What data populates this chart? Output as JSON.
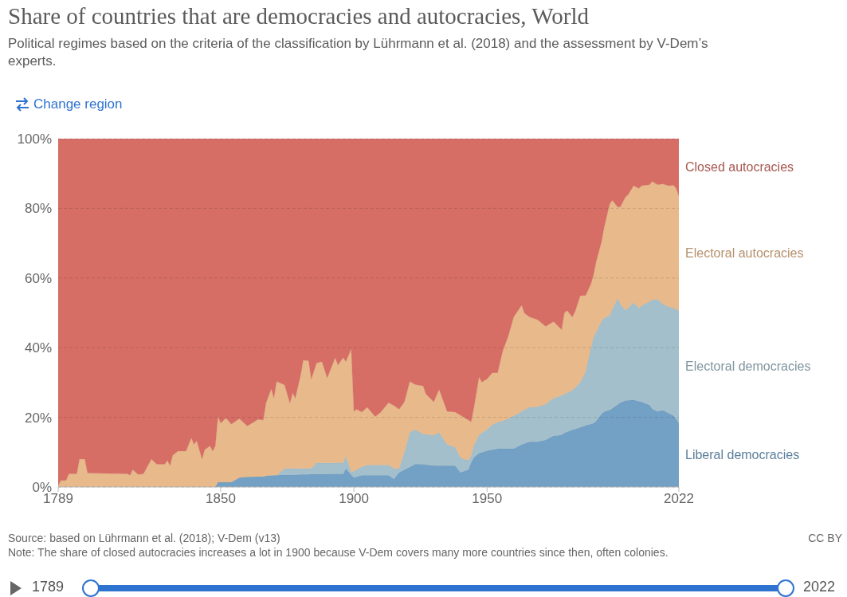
{
  "chart_data": {
    "type": "area",
    "stacked": true,
    "title": "Share of countries that are democracies and autocracies, World",
    "subtitle": "Political regimes based on the criteria of the classification by Lührmann et al. (2018) and the assessment by V-Dem’s experts.",
    "x": [
      1789,
      1790,
      1792,
      1793,
      1796,
      1797,
      1799,
      1800,
      1815,
      1816,
      1817,
      1819,
      1821,
      1824,
      1826,
      1829,
      1830,
      1831,
      1832,
      1834,
      1837,
      1839,
      1840,
      1841,
      1843,
      1844,
      1846,
      1847,
      1848,
      1849,
      1850,
      1852,
      1854,
      1857,
      1860,
      1864,
      1866,
      1867,
      1869,
      1870,
      1871,
      1874,
      1876,
      1877,
      1878,
      1880,
      1881,
      1883,
      1884,
      1886,
      1888,
      1890,
      1893,
      1894,
      1896,
      1897,
      1899,
      1900,
      1901,
      1903,
      1905,
      1908,
      1910,
      1913,
      1915,
      1917,
      1919,
      1921,
      1923,
      1926,
      1927,
      1930,
      1932,
      1935,
      1938,
      1940,
      1943,
      1944,
      1945,
      1947,
      1948,
      1950,
      1952,
      1954,
      1955,
      1956,
      1958,
      1960,
      1963,
      1964,
      1966,
      1969,
      1972,
      1975,
      1977,
      1978,
      1979,
      1980,
      1982,
      1983,
      1985,
      1987,
      1989,
      1990,
      1991,
      1993,
      1994,
      1996,
      1997,
      1999,
      2000,
      2002,
      2003,
      2005,
      2007,
      2008,
      2011,
      2012,
      2014,
      2016,
      2018,
      2020,
      2021,
      2022
    ],
    "series": [
      {
        "name": "Liberal democracies",
        "color": "#73a0c5",
        "values": [
          0,
          0,
          0,
          0,
          0,
          0,
          0,
          0,
          0,
          0,
          0,
          0,
          0,
          0,
          0,
          0,
          0,
          0,
          0,
          0,
          0,
          0,
          0,
          0,
          0,
          0,
          0,
          0,
          0,
          1.4,
          1.4,
          1.4,
          1.4,
          2.7,
          2.9,
          3,
          3,
          3.2,
          3.3,
          3.4,
          3.4,
          3.5,
          3.5,
          3.5,
          3.5,
          3.6,
          3.6,
          3.6,
          3.7,
          3.7,
          3.7,
          3.7,
          3.8,
          3.8,
          3.8,
          5.3,
          3.5,
          2.7,
          2.9,
          3.4,
          3.4,
          3.4,
          3.4,
          3.4,
          2.3,
          4.2,
          5,
          5.7,
          6.6,
          6.5,
          6.4,
          6.1,
          6.1,
          6.1,
          6.1,
          4.2,
          5,
          7,
          8.4,
          9.7,
          9.9,
          10.4,
          10.7,
          11,
          11,
          11,
          11,
          11,
          12.2,
          12.5,
          13,
          13,
          13.5,
          14.7,
          14.8,
          15,
          15.5,
          15.8,
          16.4,
          16.6,
          17.1,
          17.7,
          18.1,
          18.3,
          19,
          21,
          21.6,
          22.1,
          22.6,
          23.6,
          24.2,
          24.8,
          24.9,
          25,
          24.6,
          24.4,
          23.5,
          22.4,
          21.7,
          22,
          21.2,
          20.5,
          19.5,
          18.3
        ]
      },
      {
        "name": "Electoral democracies",
        "color": "#a3bfcb",
        "values": [
          0,
          0,
          0,
          0,
          0,
          0,
          0,
          0,
          0,
          0,
          0,
          0,
          0,
          0,
          0,
          0,
          0,
          0,
          0,
          0,
          0,
          0,
          0,
          0,
          0,
          0,
          0,
          0,
          0,
          0,
          0,
          0,
          0,
          0,
          0,
          0,
          0,
          0,
          0,
          0,
          0,
          1.8,
          1.8,
          1.8,
          1.8,
          1.7,
          1.7,
          1.7,
          1.6,
          3.2,
          3.2,
          3.2,
          3.1,
          3.1,
          3.1,
          3.5,
          0.7,
          1.9,
          2.1,
          2.4,
          2.9,
          2.9,
          2.9,
          2.9,
          3,
          1.1,
          5,
          9.9,
          9.9,
          8.7,
          8.7,
          8.8,
          9.5,
          6.1,
          5.3,
          4.2,
          2.6,
          2,
          3.4,
          5.2,
          5.6,
          6.1,
          7.2,
          7.6,
          7.8,
          8,
          8.6,
          9.4,
          9.5,
          9.7,
          9.9,
          10,
          10.3,
          10.8,
          11.2,
          11.3,
          11.1,
          11.2,
          11.4,
          11.9,
          13,
          15.3,
          21.9,
          24.8,
          25.5,
          26.6,
          26.9,
          27.1,
          28.4,
          30.5,
          28.3,
          25.9,
          26.6,
          28,
          26.8,
          27.6,
          29.7,
          31.3,
          32.2,
          30.5,
          30.6,
          30.8,
          31.5,
          32.4
        ]
      },
      {
        "name": "Electoral autocracies",
        "color": "#e8b98a",
        "values": [
          0.4,
          1.9,
          1.9,
          3.8,
          3.8,
          8,
          8,
          4,
          3.8,
          3.4,
          5,
          3.6,
          3.8,
          8,
          6.5,
          6.5,
          7.6,
          6.1,
          9.1,
          10.3,
          10.3,
          14.1,
          12.2,
          13.3,
          8,
          10.7,
          11.8,
          10.3,
          11.8,
          18.8,
          16.9,
          18.4,
          16.6,
          16.9,
          14.6,
          16.4,
          16.2,
          20.8,
          24.9,
          22.1,
          26.9,
          24,
          18.7,
          21.7,
          20.2,
          26.7,
          31.1,
          30.9,
          25.6,
          28.7,
          29.1,
          24.4,
          30.2,
          28.1,
          30.2,
          27.2,
          35.4,
          17.1,
          17.3,
          15.7,
          16.6,
          13.9,
          15.1,
          17.9,
          18.1,
          17,
          14.5,
          14.7,
          12.9,
          13.8,
          11.6,
          9.5,
          12.4,
          9.5,
          10.1,
          12.2,
          11.6,
          9.7,
          10.7,
          16.7,
          14.6,
          14.5,
          14.9,
          14.2,
          17.4,
          20.3,
          23.8,
          28.4,
          30.5,
          27.7,
          25.9,
          25,
          22.3,
          22,
          19.9,
          18.9,
          23.3,
          23.7,
          21,
          21.8,
          24.8,
          22,
          18.3,
          17.9,
          20.3,
          22.9,
          26.2,
          32,
          31.3,
          26.3,
          27.9,
          32.6,
          32.5,
          33.5,
          34.3,
          34.5,
          33.6,
          34,
          32.9,
          34.5,
          34.7,
          35.3,
          34.7,
          32.8
        ]
      },
      {
        "name": "Closed autocracies",
        "color": "#d66e65",
        "values": [
          99.6,
          98.1,
          98.1,
          96.2,
          96.2,
          92,
          92,
          96,
          96.2,
          96.6,
          95,
          96.4,
          96.2,
          92,
          93.5,
          93.5,
          92.4,
          93.9,
          90.9,
          89.7,
          89.7,
          85.9,
          87.8,
          86.7,
          92,
          89.3,
          88.2,
          89.7,
          88.2,
          79.8,
          81.7,
          80.2,
          82,
          80.4,
          82.5,
          80.6,
          80.8,
          76,
          71.8,
          74.5,
          69.7,
          70.7,
          76,
          73,
          74.5,
          68,
          63.6,
          63.8,
          69.1,
          64.4,
          64,
          68.7,
          62.9,
          65,
          62.9,
          64,
          60.4,
          78.3,
          77.7,
          78.5,
          77.1,
          79.8,
          78.6,
          75.8,
          76.6,
          77.7,
          75.5,
          69.7,
          70.6,
          71,
          73.3,
          75.6,
          72,
          78.3,
          78.5,
          79.4,
          80.8,
          81.3,
          77.5,
          68.4,
          69.9,
          69,
          67.2,
          67.2,
          63.8,
          60.7,
          56.6,
          51.2,
          47.8,
          50.1,
          51.2,
          52,
          53.9,
          52.5,
          54.1,
          54.8,
          50.1,
          49.3,
          51.2,
          49.7,
          45.1,
          45,
          41.7,
          39,
          35.2,
          29.5,
          25.3,
          18.8,
          17.7,
          19.6,
          19.6,
          16.7,
          16,
          13.5,
          14.3,
          13.5,
          13.2,
          12.3,
          13.2,
          13,
          13.5,
          13.4,
          14.3,
          16.5
        ]
      }
    ],
    "xlim": [
      1789,
      2022
    ],
    "xticks": [
      1789,
      1850,
      1900,
      1950,
      2022
    ],
    "ylim": [
      0,
      100
    ],
    "yticks": [
      {
        "value": 0,
        "label": "0%"
      },
      {
        "value": 20,
        "label": "20%"
      },
      {
        "value": 40,
        "label": "40%"
      },
      {
        "value": 60,
        "label": "60%"
      },
      {
        "value": 80,
        "label": "80%"
      },
      {
        "value": 100,
        "label": "100%"
      }
    ],
    "grid": "y",
    "legend": "right",
    "annotations": [
      "Change region",
      "Source: based on Lührmann et al. (2018); V-Dem (v13)",
      "CC BY",
      "Note: The share of closed autocracies increases a lot in 1900 because V-Dem covers many more countries since then, often colonies.",
      "1789",
      "2022"
    ]
  }
}
